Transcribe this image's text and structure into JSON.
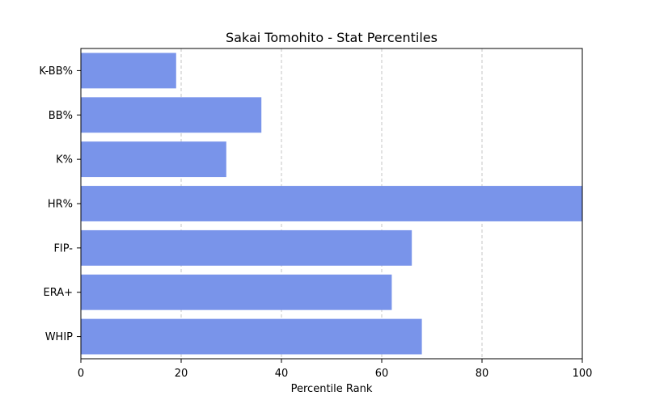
{
  "chart_data": {
    "type": "bar",
    "orientation": "horizontal",
    "title": "Sakai Tomohito - Stat Percentiles",
    "xlabel": "Percentile Rank",
    "ylabel": "",
    "xlim": [
      0,
      100
    ],
    "xticks": [
      "0",
      "20",
      "40",
      "60",
      "80",
      "100"
    ],
    "grid": "x-dashed",
    "bar_color": "#7994ea",
    "categories": [
      "K-BB%",
      "BB%",
      "K%",
      "HR%",
      "FIP-",
      "ERA+",
      "WHIP"
    ],
    "values": [
      19,
      36,
      29,
      100,
      66,
      62,
      68
    ]
  }
}
